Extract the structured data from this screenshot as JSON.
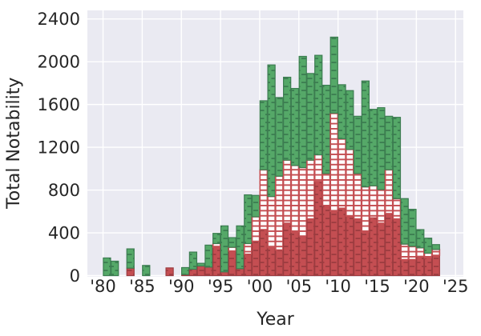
{
  "style": {
    "figure_bg": "#ffffff",
    "plot_bg": "#eaeaf2",
    "grid_color": "#ffffff",
    "text_color": "#262626"
  },
  "chart_data": {
    "type": "bar",
    "stacked": true,
    "title": "",
    "xlabel": "Year",
    "ylabel": "Total Notability",
    "x_tick_labels": [
      "'80",
      "'85",
      "'90",
      "'95",
      "'00",
      "'05",
      "'10",
      "'15",
      "'20",
      "'25"
    ],
    "x_tick_years": [
      1980,
      1985,
      1990,
      1995,
      2000,
      2005,
      2010,
      2015,
      2020,
      2025
    ],
    "y_ticks": [
      0,
      400,
      800,
      1200,
      1600,
      2000,
      2400
    ],
    "xlim": [
      1978,
      2026
    ],
    "ylim": [
      0,
      2480
    ],
    "grid": true,
    "legend": "none",
    "bar_hatch": "-",
    "categories": [
      1980,
      1981,
      1982,
      1983,
      1984,
      1985,
      1986,
      1987,
      1988,
      1989,
      1990,
      1991,
      1992,
      1993,
      1994,
      1995,
      1996,
      1997,
      1998,
      1999,
      2000,
      2001,
      2002,
      2003,
      2004,
      2005,
      2006,
      2007,
      2008,
      2009,
      2010,
      2011,
      2012,
      2013,
      2014,
      2015,
      2016,
      2017,
      2018,
      2019,
      2020,
      2021,
      2022
    ],
    "series": [
      {
        "name": "red-solid-bottom",
        "fill": "#c44e52",
        "hatch_color": "#9c3c40",
        "values": [
          0,
          0,
          0,
          70,
          0,
          0,
          0,
          0,
          72,
          0,
          10,
          60,
          90,
          80,
          265,
          35,
          230,
          65,
          200,
          320,
          430,
          260,
          240,
          490,
          405,
          370,
          530,
          880,
          655,
          600,
          630,
          555,
          530,
          405,
          540,
          490,
          580,
          530,
          150,
          150,
          180,
          165,
          190
        ]
      },
      {
        "name": "white-hatched-middle",
        "fill": "#ffffff",
        "hatch_color": "#c44e52",
        "values": [
          0,
          0,
          0,
          0,
          0,
          0,
          0,
          0,
          0,
          0,
          0,
          0,
          0,
          0,
          35,
          0,
          35,
          0,
          100,
          230,
          560,
          480,
          690,
          590,
          625,
          640,
          550,
          250,
          300,
          920,
          650,
          625,
          425,
          425,
          300,
          315,
          410,
          190,
          145,
          125,
          80,
          45,
          55
        ]
      },
      {
        "name": "green-top",
        "fill": "#55a868",
        "hatch_color": "#3c7d51",
        "values": [
          165,
          135,
          0,
          180,
          0,
          95,
          0,
          0,
          0,
          0,
          65,
          160,
          25,
          205,
          95,
          430,
          90,
          400,
          455,
          200,
          645,
          1230,
          735,
          775,
          720,
          1040,
          810,
          930,
          825,
          710,
          505,
          550,
          535,
          990,
          715,
          765,
          500,
          760,
          425,
          345,
          170,
          140,
          45
        ]
      }
    ]
  }
}
